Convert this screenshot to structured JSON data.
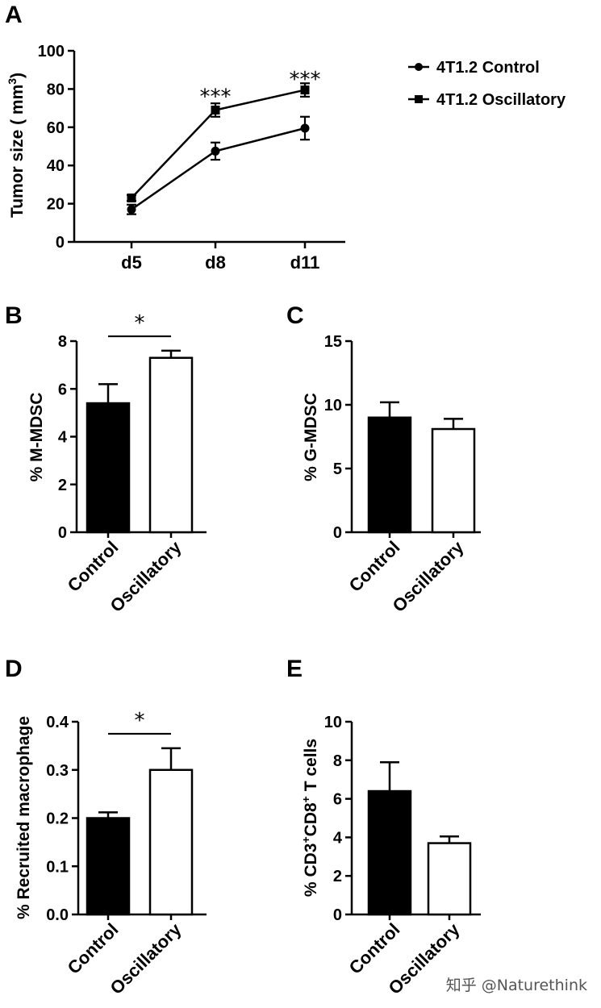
{
  "watermark": "知乎 @Naturethink",
  "colors": {
    "ink": "#000000",
    "fill_control": "#000000",
    "fill_oscillatory": "#ffffff"
  },
  "chart_data": [
    {
      "id": "A",
      "panel_label": "A",
      "type": "line",
      "ylabel_main": "Tumor size ( mm",
      "ylabel_sup": "3",
      "ylabel_close": ")",
      "ylim": [
        0,
        100
      ],
      "yticks": [
        0,
        20,
        40,
        60,
        80,
        100
      ],
      "x": [
        "d5",
        "d8",
        "d11"
      ],
      "legend_position": "top-right",
      "series": [
        {
          "name": "4T1.2 Control",
          "marker": "circle",
          "values": [
            17,
            47.5,
            59.5
          ],
          "errors": [
            2.5,
            4.5,
            6
          ]
        },
        {
          "name": "4T1.2 Oscillatory",
          "marker": "square",
          "values": [
            23,
            69,
            79.5
          ],
          "errors": [
            1.5,
            3.5,
            3.5
          ]
        }
      ],
      "annotations": [
        {
          "x": "d8",
          "y": 80,
          "text": "***"
        },
        {
          "x": "d11",
          "y": 89,
          "text": "***"
        }
      ]
    },
    {
      "id": "B",
      "panel_label": "B",
      "type": "bar",
      "ylabel": "% M-MDSC",
      "ylim": [
        0,
        8
      ],
      "yticks": [
        0,
        2,
        4,
        6,
        8
      ],
      "categories": [
        "Control",
        "Oscillatory"
      ],
      "values": [
        5.4,
        7.3
      ],
      "errors": [
        0.8,
        0.3
      ],
      "significance": {
        "text": "*",
        "between": [
          0,
          1
        ],
        "y": 8.2
      }
    },
    {
      "id": "C",
      "panel_label": "C",
      "type": "bar",
      "ylabel": "% G-MDSC",
      "ylim": [
        0,
        15
      ],
      "yticks": [
        0,
        5,
        10,
        15
      ],
      "categories": [
        "Control",
        "Oscillatory"
      ],
      "values": [
        9.0,
        8.1
      ],
      "errors": [
        1.2,
        0.8
      ]
    },
    {
      "id": "D",
      "panel_label": "D",
      "type": "bar",
      "ylabel": "% Recruited macrophage",
      "ylim": [
        0,
        0.4
      ],
      "yticks": [
        "0.0",
        "0.1",
        "0.2",
        "0.3",
        "0.4"
      ],
      "categories": [
        "Control",
        "Oscillatory"
      ],
      "values": [
        0.2,
        0.3
      ],
      "errors": [
        0.012,
        0.045
      ],
      "significance": {
        "text": "*",
        "between": [
          0,
          1
        ],
        "y": 0.375
      }
    },
    {
      "id": "E",
      "panel_label": "E",
      "type": "bar",
      "ylabel_parts": [
        "% CD3",
        "+",
        "CD8",
        "+",
        " T cells"
      ],
      "ylim": [
        0,
        10
      ],
      "yticks": [
        0,
        2,
        4,
        6,
        8,
        10
      ],
      "categories": [
        "Control",
        "Oscillatory"
      ],
      "values": [
        6.4,
        3.7
      ],
      "errors": [
        1.5,
        0.35
      ]
    }
  ]
}
